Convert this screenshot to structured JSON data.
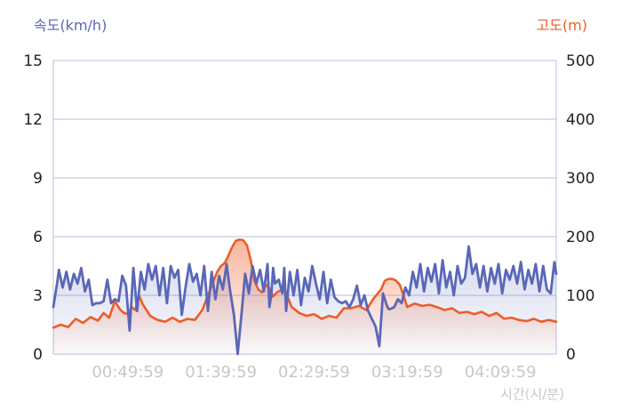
{
  "chart_data": {
    "type": "line",
    "title": "",
    "xlabel": "시간(시/분)",
    "y_left_label": "속도(km/h)",
    "y_right_label": "고도(m)",
    "x_ticks": [
      "00:49:59",
      "01:39:59",
      "02:29:59",
      "03:19:59",
      "04:09:59"
    ],
    "x_range_minutes": [
      0,
      270
    ],
    "y_left_ticks": [
      "0",
      "3",
      "6",
      "9",
      "12",
      "15"
    ],
    "y_left_range": [
      0,
      15
    ],
    "y_right_ticks": [
      "0",
      "100",
      "200",
      "300",
      "400",
      "500"
    ],
    "y_right_range": [
      0,
      500
    ],
    "grid": true,
    "colors": {
      "speed": "#5a67b8",
      "altitude": "#ee5d28",
      "axis_text": "#222222",
      "time_text": "#c8c8c8",
      "grid": "#b9bcd8"
    },
    "series": [
      {
        "axis": "left",
        "x": [
          0,
          2,
          3,
          5,
          7,
          9,
          11,
          13,
          15,
          17,
          19,
          21,
          23,
          25,
          27,
          29,
          31,
          33,
          35,
          37,
          39,
          41,
          43,
          45,
          47,
          49,
          51,
          53,
          55,
          57,
          59,
          61,
          63,
          65,
          67,
          69,
          71,
          73,
          75,
          77,
          79,
          81,
          83,
          85,
          87,
          89,
          91,
          93,
          95,
          97,
          99,
          101,
          103,
          105,
          107,
          109,
          111,
          113,
          115,
          116,
          117,
          118,
          119,
          121,
          123,
          124,
          125,
          127,
          129,
          131,
          133,
          135,
          137,
          139,
          141,
          143,
          145,
          147,
          149,
          151,
          153,
          155,
          157,
          159,
          161,
          163,
          165,
          167,
          169,
          171,
          173,
          175,
          177,
          179,
          180,
          181,
          183,
          185,
          187,
          189,
          191,
          193,
          195,
          197,
          199,
          201,
          203,
          205,
          207,
          209,
          211,
          213,
          215,
          217,
          219,
          221,
          223,
          225,
          227,
          229,
          231,
          233,
          235,
          237,
          239,
          241,
          243,
          245,
          247,
          249,
          251,
          253,
          255,
          257,
          259,
          261,
          263,
          265,
          267,
          269,
          270
        ],
        "values": [
          2.4,
          3.6,
          4.3,
          3.4,
          4.2,
          3.3,
          4.1,
          3.6,
          4.4,
          3.2,
          3.8,
          2.5,
          2.6,
          2.6,
          2.7,
          3.8,
          2.6,
          2.8,
          2.7,
          4.0,
          3.5,
          1.2,
          4.4,
          2.2,
          4.2,
          3.3,
          4.6,
          3.8,
          4.5,
          3.0,
          4.4,
          2.6,
          4.5,
          3.9,
          4.3,
          2.0,
          3.4,
          4.6,
          3.7,
          4.1,
          3.0,
          4.5,
          2.2,
          4.2,
          2.8,
          4.0,
          3.3,
          4.6,
          3.2,
          2.0,
          0.0,
          2.0,
          4.1,
          3.1,
          4.5,
          3.6,
          4.3,
          3.2,
          4.6,
          2.4,
          3.0,
          4.4,
          3.6,
          3.8,
          3.1,
          4.4,
          2.2,
          4.2,
          3.0,
          4.3,
          2.5,
          3.9,
          3.2,
          4.5,
          3.6,
          2.8,
          4.2,
          2.6,
          3.8,
          2.9,
          2.7,
          2.6,
          2.7,
          2.4,
          2.8,
          3.5,
          2.5,
          3.0,
          2.2,
          1.8,
          1.4,
          0.4,
          3.1,
          2.5,
          2.3,
          2.3,
          2.4,
          2.8,
          2.6,
          3.4,
          3.0,
          4.2,
          3.4,
          4.6,
          3.2,
          4.4,
          3.7,
          4.6,
          3.1,
          4.8,
          3.4,
          4.2,
          3.0,
          4.5,
          3.6,
          3.9,
          5.5,
          4.1,
          4.6,
          3.4,
          4.5,
          3.2,
          4.4,
          3.6,
          4.6,
          3.1,
          4.3,
          3.8,
          4.5,
          3.6,
          4.7,
          3.3,
          4.3,
          3.6,
          4.6,
          3.2,
          4.5,
          3.3,
          3.1,
          4.7,
          4.1
        ]
      },
      {
        "axis": "right",
        "x": [
          0,
          4,
          8,
          12,
          16,
          20,
          24,
          27,
          30,
          33,
          36,
          38,
          40,
          42,
          44,
          46,
          48,
          52,
          56,
          60,
          64,
          68,
          72,
          76,
          80,
          84,
          86,
          88,
          90,
          92,
          94,
          96,
          98,
          100,
          102,
          104,
          106,
          108,
          110,
          112,
          114,
          116,
          118,
          120,
          124,
          128,
          132,
          136,
          140,
          144,
          148,
          152,
          156,
          160,
          164,
          168,
          172,
          176,
          178,
          180,
          182,
          184,
          186,
          188,
          190,
          194,
          198,
          202,
          206,
          210,
          214,
          218,
          222,
          226,
          230,
          234,
          238,
          242,
          246,
          250,
          254,
          258,
          262,
          266,
          270
        ],
        "values": [
          45,
          50,
          46,
          60,
          53,
          63,
          57,
          70,
          62,
          90,
          75,
          70,
          68,
          80,
          75,
          100,
          85,
          65,
          58,
          55,
          62,
          55,
          60,
          58,
          75,
          108,
          125,
          140,
          150,
          155,
          168,
          182,
          193,
          195,
          194,
          185,
          160,
          125,
          110,
          105,
          118,
          112,
          98,
          105,
          112,
          80,
          70,
          65,
          68,
          60,
          65,
          62,
          78,
          78,
          82,
          75,
          95,
          110,
          125,
          128,
          128,
          125,
          118,
          100,
          80,
          86,
          82,
          84,
          80,
          75,
          78,
          70,
          72,
          68,
          72,
          65,
          70,
          60,
          62,
          58,
          56,
          60,
          55,
          58,
          55
        ]
      }
    ]
  }
}
